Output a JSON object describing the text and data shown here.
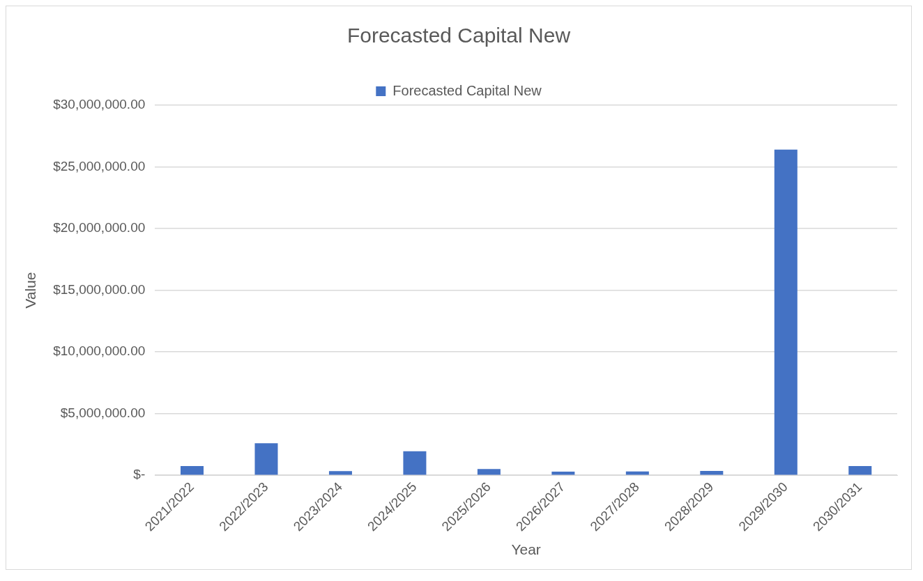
{
  "chart_data": {
    "type": "bar",
    "title": "Forecasted Capital New",
    "xlabel": "Year",
    "ylabel": "Value",
    "categories": [
      "2021/2022",
      "2022/2023",
      "2023/2024",
      "2024/2025",
      "2025/2026",
      "2026/2027",
      "2027/2028",
      "2028/2029",
      "2029/2030",
      "2030/2031"
    ],
    "series": [
      {
        "name": "Forecasted Capital New",
        "color": "#4472c4",
        "values": [
          740000,
          2600000,
          330000,
          1950000,
          500000,
          290000,
          310000,
          350000,
          26400000,
          740000
        ]
      }
    ],
    "ylim": [
      0,
      30000000
    ],
    "yticks": [
      {
        "value": 0,
        "label": "$-"
      },
      {
        "value": 5000000,
        "label": "$5,000,000.00"
      },
      {
        "value": 10000000,
        "label": "$10,000,000.00"
      },
      {
        "value": 15000000,
        "label": "$15,000,000.00"
      },
      {
        "value": 20000000,
        "label": "$20,000,000.00"
      },
      {
        "value": 25000000,
        "label": "$25,000,000.00"
      },
      {
        "value": 30000000,
        "label": "$30,000,000.00"
      }
    ],
    "grid": "y",
    "legend": "top"
  }
}
